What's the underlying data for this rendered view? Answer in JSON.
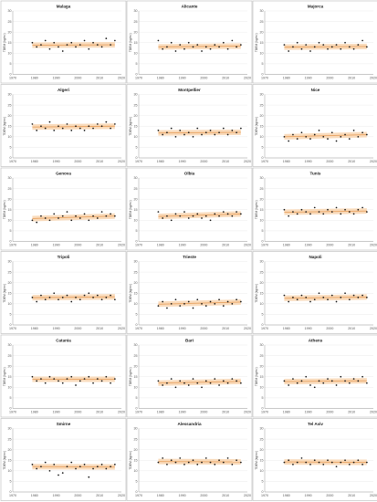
{
  "chart_data": [
    {
      "type": "scatter",
      "title": "Malaga",
      "ylabel": "TDEM (kg/m²)",
      "x": [
        1979,
        1981,
        1983,
        1985,
        1987,
        1989,
        1991,
        1993,
        1995,
        1997,
        1999,
        2001,
        2003,
        2005,
        2007,
        2009,
        2011,
        2013,
        2015,
        2017
      ],
      "values": [
        15,
        13,
        14,
        16,
        12,
        15,
        13,
        11,
        14,
        15,
        13,
        14,
        16,
        12,
        15,
        14,
        13,
        17,
        14,
        16
      ],
      "trend": [
        13.8,
        14.0
      ],
      "xlim": [
        1970,
        2020
      ],
      "ylim": [
        0,
        30
      ],
      "xticks": [
        1970,
        1980,
        1990,
        2000,
        2010,
        2020
      ],
      "yticks": [
        0,
        5,
        10,
        15,
        20,
        25,
        30
      ]
    },
    {
      "type": "scatter",
      "title": "Alicante",
      "ylabel": "TDEM (kg/m²)",
      "x": [
        1979,
        1981,
        1983,
        1985,
        1987,
        1989,
        1991,
        1993,
        1995,
        1997,
        1999,
        2001,
        2003,
        2005,
        2007,
        2009,
        2011,
        2013,
        2015,
        2017
      ],
      "values": [
        16,
        12,
        13,
        15,
        11,
        14,
        12,
        15,
        13,
        14,
        11,
        13,
        12,
        14,
        13,
        15,
        12,
        16,
        13,
        14
      ],
      "trend": [
        13.0,
        13.4
      ],
      "xlim": [
        1970,
        2020
      ],
      "ylim": [
        0,
        30
      ],
      "xticks": [
        1970,
        1980,
        1990,
        2000,
        2010,
        2020
      ],
      "yticks": [
        0,
        5,
        10,
        15,
        20,
        25,
        30
      ]
    },
    {
      "type": "scatter",
      "title": "Majorca",
      "ylabel": "TDEM (kg/m²)",
      "x": [
        1979,
        1981,
        1983,
        1985,
        1987,
        1989,
        1991,
        1993,
        1995,
        1997,
        1999,
        2001,
        2003,
        2005,
        2007,
        2009,
        2011,
        2013,
        2015,
        2017
      ],
      "values": [
        14,
        11,
        13,
        15,
        12,
        14,
        11,
        13,
        15,
        14,
        12,
        13,
        14,
        12,
        15,
        13,
        12,
        14,
        16,
        13
      ],
      "trend": [
        12.9,
        13.2
      ],
      "xlim": [
        1970,
        2020
      ],
      "ylim": [
        0,
        30
      ],
      "xticks": [
        1970,
        1980,
        1990,
        2000,
        2010,
        2020
      ],
      "yticks": [
        0,
        5,
        10,
        15,
        20,
        25,
        30
      ]
    },
    {
      "type": "scatter",
      "title": "Algeri",
      "ylabel": "TDEM (kg/m²)",
      "x": [
        1979,
        1981,
        1983,
        1985,
        1987,
        1989,
        1991,
        1993,
        1995,
        1997,
        1999,
        2001,
        2003,
        2005,
        2007,
        2009,
        2011,
        2013,
        2015,
        2017
      ],
      "values": [
        16,
        13,
        15,
        14,
        17,
        13,
        15,
        14,
        16,
        13,
        15,
        14,
        13,
        15,
        14,
        16,
        15,
        17,
        14,
        16
      ],
      "trend": [
        14.6,
        15.0
      ],
      "xlim": [
        1970,
        2020
      ],
      "ylim": [
        0,
        30
      ],
      "xticks": [
        1970,
        1980,
        1990,
        2000,
        2010,
        2020
      ],
      "yticks": [
        0,
        5,
        10,
        15,
        20,
        25,
        30
      ]
    },
    {
      "type": "scatter",
      "title": "Montpellier",
      "ylabel": "TDEM (kg/m²)",
      "x": [
        1979,
        1981,
        1983,
        1985,
        1987,
        1989,
        1991,
        1993,
        1995,
        1997,
        1999,
        2001,
        2003,
        2005,
        2007,
        2009,
        2011,
        2013,
        2015,
        2017
      ],
      "values": [
        13,
        11,
        12,
        14,
        10,
        13,
        11,
        12,
        10,
        14,
        11,
        12,
        13,
        11,
        12,
        14,
        11,
        13,
        12,
        14
      ],
      "trend": [
        11.8,
        12.1
      ],
      "xlim": [
        1970,
        2020
      ],
      "ylim": [
        0,
        30
      ],
      "xticks": [
        1970,
        1980,
        1990,
        2000,
        2010,
        2020
      ],
      "yticks": [
        0,
        5,
        10,
        15,
        20,
        25,
        30
      ]
    },
    {
      "type": "scatter",
      "title": "Nice",
      "ylabel": "TDEM (kg/m²)",
      "x": [
        1979,
        1981,
        1983,
        1985,
        1987,
        1989,
        1991,
        1993,
        1995,
        1997,
        1999,
        2001,
        2003,
        2005,
        2007,
        2009,
        2011,
        2013,
        2015,
        2017
      ],
      "values": [
        10,
        8,
        11,
        9,
        12,
        10,
        9,
        11,
        13,
        10,
        9,
        12,
        8,
        10,
        11,
        9,
        13,
        10,
        12,
        11
      ],
      "trend": [
        10.0,
        11.0
      ],
      "xlim": [
        1970,
        2020
      ],
      "ylim": [
        0,
        30
      ],
      "xticks": [
        1970,
        1980,
        1990,
        2000,
        2010,
        2020
      ],
      "yticks": [
        0,
        5,
        10,
        15,
        20,
        25,
        30
      ]
    },
    {
      "type": "scatter",
      "title": "Genova",
      "ylabel": "TDEM (kg/m²)",
      "x": [
        1979,
        1981,
        1983,
        1985,
        1987,
        1989,
        1991,
        1993,
        1995,
        1997,
        1999,
        2001,
        2003,
        2005,
        2007,
        2009,
        2011,
        2013,
        2015,
        2017
      ],
      "values": [
        10,
        9,
        12,
        11,
        10,
        13,
        11,
        12,
        14,
        10,
        12,
        11,
        13,
        10,
        12,
        11,
        14,
        12,
        13,
        12
      ],
      "trend": [
        10.8,
        12.0
      ],
      "xlim": [
        1970,
        2020
      ],
      "ylim": [
        0,
        30
      ],
      "xticks": [
        1970,
        1980,
        1990,
        2000,
        2010,
        2020
      ],
      "yticks": [
        0,
        5,
        10,
        15,
        20,
        25,
        30
      ]
    },
    {
      "type": "scatter",
      "title": "Olbia",
      "ylabel": "TDEM (kg/m²)",
      "x": [
        1979,
        1981,
        1983,
        1985,
        1987,
        1989,
        1991,
        1993,
        1995,
        1997,
        1999,
        2001,
        2003,
        2005,
        2007,
        2009,
        2011,
        2013,
        2015,
        2017
      ],
      "values": [
        14,
        11,
        12,
        10,
        13,
        12,
        14,
        11,
        12,
        13,
        11,
        12,
        10,
        13,
        12,
        14,
        13,
        12,
        14,
        13
      ],
      "trend": [
        11.8,
        13.0
      ],
      "xlim": [
        1970,
        2020
      ],
      "ylim": [
        0,
        30
      ],
      "xticks": [
        1970,
        1980,
        1990,
        2000,
        2010,
        2020
      ],
      "yticks": [
        0,
        5,
        10,
        15,
        20,
        25,
        30
      ]
    },
    {
      "type": "scatter",
      "title": "Tunis",
      "ylabel": "TDEM (kg/m²)",
      "x": [
        1979,
        1981,
        1983,
        1985,
        1987,
        1989,
        1991,
        1993,
        1995,
        1997,
        1999,
        2001,
        2003,
        2005,
        2007,
        2009,
        2011,
        2013,
        2015,
        2017
      ],
      "values": [
        15,
        12,
        14,
        13,
        15,
        14,
        13,
        16,
        14,
        13,
        15,
        14,
        16,
        13,
        15,
        14,
        13,
        15,
        16,
        14
      ],
      "trend": [
        13.8,
        14.4
      ],
      "xlim": [
        1970,
        2020
      ],
      "ylim": [
        0,
        30
      ],
      "xticks": [
        1970,
        1980,
        1990,
        2000,
        2010,
        2020
      ],
      "yticks": [
        0,
        5,
        10,
        15,
        20,
        25,
        30
      ]
    },
    {
      "type": "scatter",
      "title": "Tripoli",
      "ylabel": "TDEM (kg/m²)",
      "x": [
        1979,
        1981,
        1983,
        1985,
        1987,
        1989,
        1991,
        1993,
        1995,
        1997,
        1999,
        2001,
        2003,
        2005,
        2007,
        2009,
        2011,
        2013,
        2015,
        2017
      ],
      "values": [
        13,
        11,
        14,
        12,
        13,
        15,
        12,
        13,
        14,
        11,
        13,
        12,
        14,
        15,
        13,
        14,
        12,
        13,
        14,
        12
      ],
      "trend": [
        12.9,
        13.3
      ],
      "xlim": [
        1970,
        2020
      ],
      "ylim": [
        0,
        30
      ],
      "xticks": [
        1970,
        1980,
        1990,
        2000,
        2010,
        2020
      ],
      "yticks": [
        0,
        5,
        10,
        15,
        20,
        25,
        30
      ]
    },
    {
      "type": "scatter",
      "title": "Trieste",
      "ylabel": "TDEM (kg/m²)",
      "x": [
        1979,
        1981,
        1983,
        1985,
        1987,
        1989,
        1991,
        1993,
        1995,
        1997,
        1999,
        2001,
        2003,
        2005,
        2007,
        2009,
        2011,
        2013,
        2015,
        2017
      ],
      "values": [
        9,
        11,
        8,
        10,
        12,
        9,
        10,
        11,
        8,
        12,
        10,
        9,
        11,
        10,
        12,
        9,
        11,
        10,
        12,
        11
      ],
      "trend": [
        9.8,
        10.8
      ],
      "xlim": [
        1970,
        2020
      ],
      "ylim": [
        0,
        30
      ],
      "xticks": [
        1970,
        1980,
        1990,
        2000,
        2010,
        2020
      ],
      "yticks": [
        0,
        5,
        10,
        15,
        20,
        25,
        30
      ]
    },
    {
      "type": "scatter",
      "title": "Napoli",
      "ylabel": "TDEM (kg/m²)",
      "x": [
        1979,
        1981,
        1983,
        1985,
        1987,
        1989,
        1991,
        1993,
        1995,
        1997,
        1999,
        2001,
        2003,
        2005,
        2007,
        2009,
        2011,
        2013,
        2015,
        2017
      ],
      "values": [
        14,
        11,
        13,
        12,
        14,
        13,
        11,
        12,
        15,
        13,
        12,
        14,
        11,
        13,
        15,
        12,
        14,
        13,
        14,
        13
      ],
      "trend": [
        12.6,
        13.2
      ],
      "xlim": [
        1970,
        2020
      ],
      "ylim": [
        0,
        30
      ],
      "xticks": [
        1970,
        1980,
        1990,
        2000,
        2010,
        2020
      ],
      "yticks": [
        0,
        5,
        10,
        15,
        20,
        25,
        30
      ]
    },
    {
      "type": "scatter",
      "title": "Catania",
      "ylabel": "TDEM (kg/m²)",
      "x": [
        1979,
        1981,
        1983,
        1985,
        1987,
        1989,
        1991,
        1993,
        1995,
        1997,
        1999,
        2001,
        2003,
        2005,
        2007,
        2009,
        2011,
        2013,
        2015,
        2017
      ],
      "values": [
        15,
        13,
        14,
        12,
        15,
        14,
        13,
        12,
        14,
        15,
        11,
        13,
        14,
        15,
        12,
        14,
        13,
        15,
        12,
        14
      ],
      "trend": [
        13.8,
        13.8
      ],
      "xlim": [
        1970,
        2020
      ],
      "ylim": [
        0,
        30
      ],
      "xticks": [
        1970,
        1980,
        1990,
        2000,
        2010,
        2020
      ],
      "yticks": [
        0,
        5,
        10,
        15,
        20,
        25,
        30
      ]
    },
    {
      "type": "scatter",
      "title": "Bari",
      "ylabel": "TDEM (kg/m²)",
      "x": [
        1979,
        1981,
        1983,
        1985,
        1987,
        1989,
        1991,
        1993,
        1995,
        1997,
        1999,
        2001,
        2003,
        2005,
        2007,
        2009,
        2011,
        2013,
        2015,
        2017
      ],
      "values": [
        13,
        11,
        12,
        14,
        10,
        13,
        12,
        11,
        14,
        12,
        10,
        13,
        12,
        14,
        11,
        13,
        12,
        14,
        13,
        12
      ],
      "trend": [
        12.0,
        12.8
      ],
      "xlim": [
        1970,
        2020
      ],
      "ylim": [
        0,
        30
      ],
      "xticks": [
        1970,
        1980,
        1990,
        2000,
        2010,
        2020
      ],
      "yticks": [
        0,
        5,
        10,
        15,
        20,
        25,
        30
      ]
    },
    {
      "type": "scatter",
      "title": "Athens",
      "ylabel": "TDEM (kg/m²)",
      "x": [
        1979,
        1981,
        1983,
        1985,
        1987,
        1989,
        1991,
        1993,
        1995,
        1997,
        1999,
        2001,
        2003,
        2005,
        2007,
        2009,
        2011,
        2013,
        2015,
        2017
      ],
      "values": [
        13,
        11,
        14,
        12,
        13,
        15,
        11,
        10,
        13,
        12,
        14,
        13,
        11,
        15,
        13,
        12,
        14,
        13,
        15,
        12
      ],
      "trend": [
        12.7,
        13.1
      ],
      "xlim": [
        1970,
        2020
      ],
      "ylim": [
        0,
        30
      ],
      "xticks": [
        1970,
        1980,
        1990,
        2000,
        2010,
        2020
      ],
      "yticks": [
        0,
        5,
        10,
        15,
        20,
        25,
        30
      ]
    },
    {
      "type": "scatter",
      "title": "Smirne",
      "ylabel": "TDEM (kg/m²)",
      "x": [
        1979,
        1981,
        1983,
        1985,
        1987,
        1989,
        1991,
        1993,
        1995,
        1997,
        1999,
        2001,
        2003,
        2005,
        2007,
        2009,
        2011,
        2013,
        2015,
        2017
      ],
      "values": [
        13,
        11,
        12,
        14,
        10,
        13,
        8,
        9,
        12,
        14,
        11,
        12,
        13,
        7,
        11,
        12,
        13,
        11,
        12,
        13
      ],
      "trend": [
        12.0,
        11.8
      ],
      "xlim": [
        1970,
        2020
      ],
      "ylim": [
        0,
        30
      ],
      "xticks": [
        1970,
        1980,
        1990,
        2000,
        2010,
        2020
      ],
      "yticks": [
        0,
        5,
        10,
        15,
        20,
        25,
        30
      ]
    },
    {
      "type": "scatter",
      "title": "Alessandria",
      "ylabel": "TDEM (kg/m²)",
      "x": [
        1979,
        1981,
        1983,
        1985,
        1987,
        1989,
        1991,
        1993,
        1995,
        1997,
        1999,
        2001,
        2003,
        2005,
        2007,
        2009,
        2011,
        2013,
        2015,
        2017
      ],
      "values": [
        14,
        16,
        13,
        15,
        14,
        16,
        13,
        14,
        15,
        13,
        14,
        16,
        14,
        13,
        15,
        14,
        16,
        13,
        15,
        14
      ],
      "trend": [
        14.4,
        14.2
      ],
      "xlim": [
        1970,
        2020
      ],
      "ylim": [
        0,
        30
      ],
      "xticks": [
        1970,
        1980,
        1990,
        2000,
        2010,
        2020
      ],
      "yticks": [
        0,
        5,
        10,
        15,
        20,
        25,
        30
      ]
    },
    {
      "type": "scatter",
      "title": "Tel Aviv",
      "ylabel": "TDEM (kg/m²)",
      "x": [
        1979,
        1981,
        1983,
        1985,
        1987,
        1989,
        1991,
        1993,
        1995,
        1997,
        1999,
        2001,
        2003,
        2005,
        2007,
        2009,
        2011,
        2013,
        2015,
        2017
      ],
      "values": [
        14,
        15,
        13,
        14,
        16,
        14,
        13,
        15,
        14,
        13,
        15,
        14,
        12,
        14,
        15,
        13,
        14,
        15,
        13,
        14
      ],
      "trend": [
        14.2,
        14.0
      ],
      "xlim": [
        1970,
        2020
      ],
      "ylim": [
        0,
        30
      ],
      "xticks": [
        1970,
        1980,
        1990,
        2000,
        2010,
        2020
      ],
      "yticks": [
        0,
        5,
        10,
        15,
        20,
        25,
        30
      ]
    }
  ],
  "colors": {
    "band": "#f8d5b0",
    "trend": "#e8a15e",
    "points": "#111111",
    "frame": "#b9b9b9"
  }
}
